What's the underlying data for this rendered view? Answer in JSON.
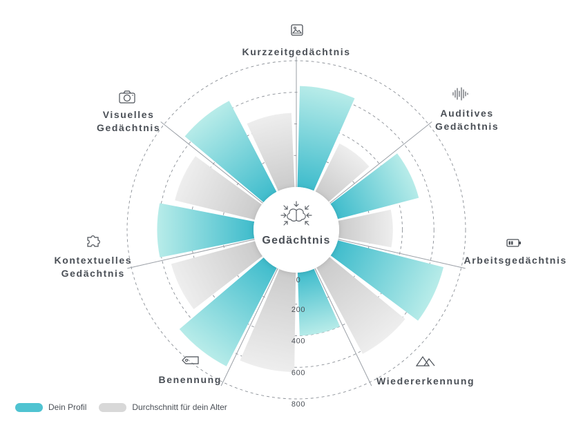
{
  "chart_data": {
    "type": "radial-bar",
    "center_label": "Gedächtnis",
    "categories": [
      {
        "key": "kurzzeit",
        "label_lines": [
          "Kurzzeitgedächtnis"
        ],
        "icon": "image-icon"
      },
      {
        "key": "auditiv",
        "label_lines": [
          "Auditives",
          "Gedächtnis"
        ],
        "icon": "soundwave-icon"
      },
      {
        "key": "arbeit",
        "label_lines": [
          "Arbeitsgedächtnis"
        ],
        "icon": "battery-icon"
      },
      {
        "key": "wieder",
        "label_lines": [
          "Wiedererkennung"
        ],
        "icon": "mountains-icon"
      },
      {
        "key": "benennung",
        "label_lines": [
          "Benennung"
        ],
        "icon": "tag-icon"
      },
      {
        "key": "kontext",
        "label_lines": [
          "Kontextuelles",
          "Gedächtnis"
        ],
        "icon": "puzzle-icon"
      },
      {
        "key": "visuell",
        "label_lines": [
          "Visuelles",
          "Gedächtnis"
        ],
        "icon": "camera-icon"
      }
    ],
    "series": [
      {
        "name": "Dein Profil",
        "color": "#4fc3d1",
        "values": [
          640,
          530,
          690,
          400,
          700,
          610,
          650
        ]
      },
      {
        "name": "Durchschnitt für dein Alter",
        "color": "#d8d8d8",
        "values": [
          340,
          340,
          620,
          630,
          550,
          520,
          470
        ]
      }
    ],
    "radial_ticks": [
      0,
      200,
      400,
      600,
      800
    ],
    "rlim": [
      0,
      800
    ],
    "legend_position": "bottom-left"
  }
}
